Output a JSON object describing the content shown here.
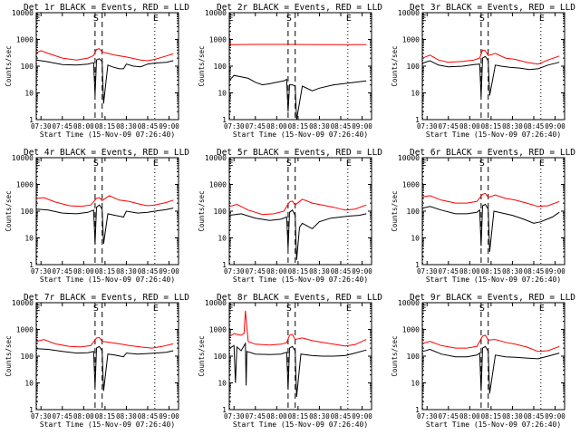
{
  "x_ticks": [
    "07:30",
    "07:45",
    "08:00",
    "08:15",
    "08:30",
    "08:45",
    "09:00"
  ],
  "y_ticks": [
    "1",
    "10",
    "100",
    "1000",
    "10000"
  ],
  "colors": {
    "events": "#000000",
    "lld": "#ff0000",
    "markers": "#000000"
  },
  "chart_data": [
    {
      "type": "line",
      "title": "Det 1r BLACK = Events, RED = LLD",
      "xlabel": "Start Time (15-Nov-09 07:26:40)",
      "ylabel": "Counts/sec",
      "xlim": [
        "07:26:40",
        "09:06:40"
      ],
      "ylim": [
        1,
        10000
      ],
      "yscale": "log",
      "grid": false,
      "markers": {
        "E_start": "07:27",
        "S_start": "08:08",
        "S_end": "08:13",
        "E_end": "08:50"
      },
      "series": [
        {
          "name": "Events",
          "color": "#000000",
          "times": [
            "07:27",
            "07:35",
            "07:45",
            "07:55",
            "08:03",
            "08:07",
            "08:08",
            "08:09",
            "08:11",
            "08:13",
            "08:14",
            "08:17",
            "08:20",
            "08:25",
            "08:28",
            "08:30",
            "08:35",
            "08:40",
            "08:45",
            "08:50",
            "08:58",
            "09:03"
          ],
          "values": [
            170,
            145,
            115,
            110,
            120,
            135,
            8,
            170,
            190,
            150,
            4,
            110,
            95,
            80,
            80,
            120,
            100,
            95,
            120,
            130,
            140,
            160
          ]
        },
        {
          "name": "LLD",
          "color": "#ff0000",
          "times": [
            "07:27",
            "07:30",
            "07:35",
            "07:45",
            "07:55",
            "08:03",
            "08:07",
            "08:09",
            "08:11",
            "08:13",
            "08:17",
            "08:22",
            "08:30",
            "08:40",
            "08:45",
            "08:50",
            "08:58",
            "09:03"
          ],
          "values": [
            320,
            380,
            300,
            200,
            170,
            200,
            250,
            420,
            450,
            340,
            300,
            260,
            220,
            170,
            160,
            180,
            240,
            290
          ]
        }
      ]
    },
    {
      "type": "line",
      "title": "Det 2r BLACK = Events, RED = LLD",
      "xlabel": "Start Time (15-Nov-09 07:26:40)",
      "ylabel": "Counts/sec",
      "xlim": [
        "07:26:40",
        "09:06:40"
      ],
      "ylim": [
        1,
        10000
      ],
      "yscale": "log",
      "grid": false,
      "markers": {
        "E_start": "07:27",
        "S_start": "08:08",
        "S_end": "08:13",
        "E_end": "08:50"
      },
      "series": [
        {
          "name": "Events",
          "color": "#000000",
          "times": [
            "07:27",
            "07:30",
            "07:35",
            "07:40",
            "07:45",
            "07:50",
            "07:55",
            "08:00",
            "08:05",
            "08:07",
            "08:08",
            "08:09",
            "08:11",
            "08:13",
            "08:14",
            "08:18",
            "08:25",
            "08:30",
            "08:40",
            "08:50",
            "09:03"
          ],
          "values": [
            30,
            45,
            40,
            35,
            25,
            20,
            22,
            25,
            28,
            32,
            2,
            20,
            20,
            18,
            1,
            18,
            12,
            15,
            20,
            23,
            28
          ]
        },
        {
          "name": "LLD",
          "color": "#ff0000",
          "times": [
            "07:27",
            "07:45",
            "08:05",
            "08:30",
            "09:03"
          ],
          "values": [
            640,
            650,
            650,
            640,
            640
          ]
        }
      ]
    },
    {
      "type": "line",
      "title": "Det 3r BLACK = Events, RED = LLD",
      "xlabel": "Start Time (15-Nov-09 07:26:40)",
      "ylabel": "Counts/sec",
      "xlim": [
        "07:26:40",
        "09:06:40"
      ],
      "ylim": [
        1,
        10000
      ],
      "yscale": "log",
      "grid": false,
      "markers": {
        "E_start": "07:27",
        "S_start": "08:08",
        "S_end": "08:13",
        "E_end": "08:50"
      },
      "series": [
        {
          "name": "Events",
          "color": "#000000",
          "times": [
            "07:27",
            "07:32",
            "07:38",
            "07:45",
            "07:55",
            "08:03",
            "08:07",
            "08:08",
            "08:09",
            "08:11",
            "08:13",
            "08:14",
            "08:18",
            "08:22",
            "08:28",
            "08:35",
            "08:42",
            "08:48",
            "08:55",
            "09:03"
          ],
          "values": [
            130,
            160,
            110,
            95,
            100,
            115,
            120,
            7,
            200,
            230,
            160,
            8,
            110,
            100,
            90,
            85,
            75,
            80,
            110,
            140
          ]
        },
        {
          "name": "LLD",
          "color": "#ff0000",
          "times": [
            "07:27",
            "07:32",
            "07:38",
            "07:45",
            "07:55",
            "08:03",
            "08:07",
            "08:09",
            "08:11",
            "08:13",
            "08:18",
            "08:25",
            "08:32",
            "08:40",
            "08:48",
            "08:55",
            "09:03"
          ],
          "values": [
            200,
            260,
            170,
            140,
            150,
            170,
            200,
            400,
            380,
            250,
            300,
            200,
            180,
            140,
            120,
            170,
            240
          ]
        }
      ]
    },
    {
      "type": "line",
      "title": "Det 4r BLACK = Events, RED = LLD",
      "xlabel": "Start Time (15-Nov-09 07:26:40)",
      "ylabel": "Counts/sec",
      "xlim": [
        "07:26:40",
        "09:06:40"
      ],
      "ylim": [
        1,
        10000
      ],
      "yscale": "log",
      "grid": false,
      "markers": {
        "E_start": "07:27",
        "S_start": "08:08",
        "S_end": "08:13",
        "E_end": "08:50"
      },
      "series": [
        {
          "name": "Events",
          "color": "#000000",
          "times": [
            "07:27",
            "07:35",
            "07:45",
            "07:55",
            "08:03",
            "08:07",
            "08:08",
            "08:09",
            "08:11",
            "08:13",
            "08:14",
            "08:17",
            "08:22",
            "08:28",
            "08:30",
            "08:38",
            "08:45",
            "08:50",
            "08:58",
            "09:03"
          ],
          "values": [
            120,
            110,
            85,
            80,
            90,
            110,
            6,
            140,
            170,
            120,
            6,
            80,
            70,
            60,
            100,
            85,
            90,
            100,
            115,
            130
          ]
        },
        {
          "name": "LLD",
          "color": "#ff0000",
          "times": [
            "07:27",
            "07:32",
            "07:40",
            "07:50",
            "07:58",
            "08:05",
            "08:09",
            "08:11",
            "08:13",
            "08:18",
            "08:25",
            "08:32",
            "08:40",
            "08:45",
            "08:50",
            "08:58",
            "09:03"
          ],
          "values": [
            300,
            320,
            220,
            160,
            150,
            170,
            300,
            320,
            250,
            380,
            260,
            230,
            180,
            160,
            170,
            210,
            260
          ]
        }
      ]
    },
    {
      "type": "line",
      "title": "Det 5r BLACK = Events, RED = LLD",
      "xlabel": "Start Time (15-Nov-09 07:26:40)",
      "ylabel": "Counts/sec",
      "xlim": [
        "07:26:40",
        "09:06:40"
      ],
      "ylim": [
        1,
        10000
      ],
      "yscale": "log",
      "grid": false,
      "markers": {
        "E_start": "07:27",
        "S_start": "08:08",
        "S_end": "08:13",
        "E_end": "08:50"
      },
      "series": [
        {
          "name": "Events",
          "color": "#000000",
          "times": [
            "07:27",
            "07:35",
            "07:45",
            "07:55",
            "08:03",
            "08:07",
            "08:08",
            "08:09",
            "08:11",
            "08:13",
            "08:14",
            "08:16",
            "08:18",
            "08:25",
            "08:30",
            "08:38",
            "08:45",
            "08:50",
            "08:58",
            "09:03"
          ],
          "values": [
            70,
            80,
            55,
            45,
            50,
            60,
            4,
            90,
            110,
            70,
            1.5,
            25,
            35,
            22,
            40,
            55,
            60,
            65,
            70,
            80
          ]
        },
        {
          "name": "LLD",
          "color": "#ff0000",
          "times": [
            "07:27",
            "07:32",
            "07:40",
            "07:50",
            "07:58",
            "08:05",
            "08:09",
            "08:11",
            "08:13",
            "08:18",
            "08:25",
            "08:32",
            "08:40",
            "08:48",
            "08:55",
            "09:03"
          ],
          "values": [
            150,
            180,
            110,
            75,
            80,
            100,
            220,
            240,
            170,
            280,
            200,
            170,
            140,
            110,
            120,
            170
          ]
        }
      ]
    },
    {
      "type": "line",
      "title": "Det 6r BLACK = Events, RED = LLD",
      "xlabel": "Start Time (15-Nov-09 07:26:40)",
      "ylabel": "Counts/sec",
      "xlim": [
        "07:26:40",
        "09:06:40"
      ],
      "ylim": [
        1,
        10000
      ],
      "yscale": "log",
      "grid": false,
      "markers": {
        "E_start": "07:27",
        "S_start": "08:08",
        "S_end": "08:13",
        "E_end": "08:50"
      },
      "series": [
        {
          "name": "Events",
          "color": "#000000",
          "times": [
            "07:27",
            "07:32",
            "07:40",
            "07:50",
            "07:58",
            "08:05",
            "08:07",
            "08:08",
            "08:09",
            "08:11",
            "08:13",
            "08:14",
            "08:17",
            "08:25",
            "08:30",
            "08:38",
            "08:45",
            "08:50",
            "08:58",
            "09:03"
          ],
          "values": [
            130,
            150,
            110,
            80,
            80,
            90,
            110,
            5,
            160,
            180,
            120,
            3,
            100,
            80,
            70,
            50,
            35,
            40,
            60,
            90
          ]
        },
        {
          "name": "LLD",
          "color": "#ff0000",
          "times": [
            "07:27",
            "07:32",
            "07:40",
            "07:50",
            "07:58",
            "08:05",
            "08:09",
            "08:11",
            "08:13",
            "08:18",
            "08:25",
            "08:32",
            "08:40",
            "08:48",
            "08:55",
            "09:03"
          ],
          "values": [
            340,
            380,
            260,
            200,
            200,
            230,
            430,
            460,
            330,
            400,
            300,
            260,
            200,
            150,
            160,
            230
          ]
        }
      ]
    },
    {
      "type": "line",
      "title": "Det 7r BLACK = Events, RED = LLD",
      "xlabel": "Start Time (15-Nov-09 07:26:40)",
      "ylabel": "Counts/sec",
      "xlim": [
        "07:26:40",
        "09:06:40"
      ],
      "ylim": [
        1,
        10000
      ],
      "yscale": "log",
      "grid": false,
      "markers": {
        "E_start": "07:27",
        "S_start": "08:08",
        "S_end": "08:13",
        "E_end": "08:50"
      },
      "series": [
        {
          "name": "Events",
          "color": "#000000",
          "times": [
            "07:27",
            "07:35",
            "07:45",
            "07:55",
            "08:03",
            "08:07",
            "08:08",
            "08:09",
            "08:11",
            "08:13",
            "08:14",
            "08:17",
            "08:22",
            "08:28",
            "08:30",
            "08:38",
            "08:45",
            "08:50",
            "08:58",
            "09:03"
          ],
          "values": [
            190,
            180,
            150,
            130,
            135,
            150,
            7,
            200,
            230,
            160,
            5,
            120,
            110,
            95,
            130,
            120,
            125,
            130,
            140,
            160
          ]
        },
        {
          "name": "LLD",
          "color": "#ff0000",
          "times": [
            "07:27",
            "07:32",
            "07:40",
            "07:50",
            "07:58",
            "08:05",
            "08:09",
            "08:11",
            "08:13",
            "08:18",
            "08:25",
            "08:32",
            "08:40",
            "08:48",
            "08:55",
            "09:03"
          ],
          "values": [
            360,
            420,
            290,
            230,
            220,
            250,
            480,
            500,
            360,
            330,
            290,
            250,
            220,
            200,
            230,
            290
          ]
        }
      ]
    },
    {
      "type": "line",
      "title": "Det 8r BLACK = Events, RED = LLD",
      "xlabel": "Start Time (15-Nov-09 07:26:40)",
      "ylabel": "Counts/sec",
      "xlim": [
        "07:26:40",
        "09:06:40"
      ],
      "ylim": [
        1,
        10000
      ],
      "yscale": "log",
      "grid": false,
      "markers": {
        "E_start": "07:27",
        "S_start": "08:08",
        "S_end": "08:13",
        "E_end": "08:50"
      },
      "series": [
        {
          "name": "Events",
          "color": "#000000",
          "times": [
            "07:27",
            "07:30",
            "07:31",
            "07:32",
            "07:35",
            "07:38",
            "07:38.5",
            "07:39",
            "07:45",
            "07:55",
            "08:03",
            "08:07",
            "08:08",
            "08:09",
            "08:11",
            "08:13",
            "08:14",
            "08:17",
            "08:25",
            "08:32",
            "08:40",
            "08:48",
            "08:55",
            "09:03"
          ],
          "values": [
            200,
            250,
            10,
            220,
            160,
            300,
            8,
            150,
            120,
            115,
            120,
            140,
            6,
            200,
            230,
            160,
            3,
            120,
            105,
            100,
            100,
            105,
            130,
            170
          ]
        },
        {
          "name": "LLD",
          "color": "#ff0000",
          "times": [
            "07:27",
            "07:30",
            "07:35",
            "07:37",
            "07:38",
            "07:40",
            "07:45",
            "07:55",
            "08:03",
            "08:07",
            "08:09",
            "08:11",
            "08:13",
            "08:18",
            "08:25",
            "08:32",
            "08:40",
            "08:48",
            "08:55",
            "09:03"
          ],
          "values": [
            550,
            700,
            600,
            700,
            5000,
            350,
            280,
            260,
            280,
            320,
            600,
            650,
            420,
            480,
            380,
            330,
            280,
            240,
            270,
            420
          ]
        }
      ]
    },
    {
      "type": "line",
      "title": "Det 9r BLACK = Events, RED = LLD",
      "xlabel": "Start Time (15-Nov-09 07:26:40)",
      "ylabel": "Counts/sec",
      "xlim": [
        "07:26:40",
        "09:06:40"
      ],
      "ylim": [
        1,
        10000
      ],
      "yscale": "log",
      "grid": false,
      "markers": {
        "E_start": "07:27",
        "S_start": "08:08",
        "S_end": "08:13",
        "E_end": "08:50"
      },
      "series": [
        {
          "name": "Events",
          "color": "#000000",
          "times": [
            "07:27",
            "07:32",
            "07:40",
            "07:50",
            "07:58",
            "08:05",
            "08:07",
            "08:08",
            "08:09",
            "08:11",
            "08:13",
            "08:14",
            "08:18",
            "08:25",
            "08:32",
            "08:40",
            "08:48",
            "08:55",
            "09:03"
          ],
          "values": [
            150,
            180,
            120,
            95,
            95,
            110,
            130,
            5,
            200,
            230,
            150,
            4,
            110,
            95,
            90,
            85,
            80,
            100,
            130
          ]
        },
        {
          "name": "LLD",
          "color": "#ff0000",
          "times": [
            "07:27",
            "07:32",
            "07:40",
            "07:50",
            "07:58",
            "08:05",
            "08:09",
            "08:11",
            "08:13",
            "08:18",
            "08:25",
            "08:32",
            "08:40",
            "08:48",
            "08:55",
            "09:03"
          ],
          "values": [
            300,
            360,
            250,
            200,
            200,
            230,
            560,
            600,
            400,
            420,
            330,
            280,
            220,
            150,
            160,
            230
          ]
        }
      ]
    }
  ]
}
